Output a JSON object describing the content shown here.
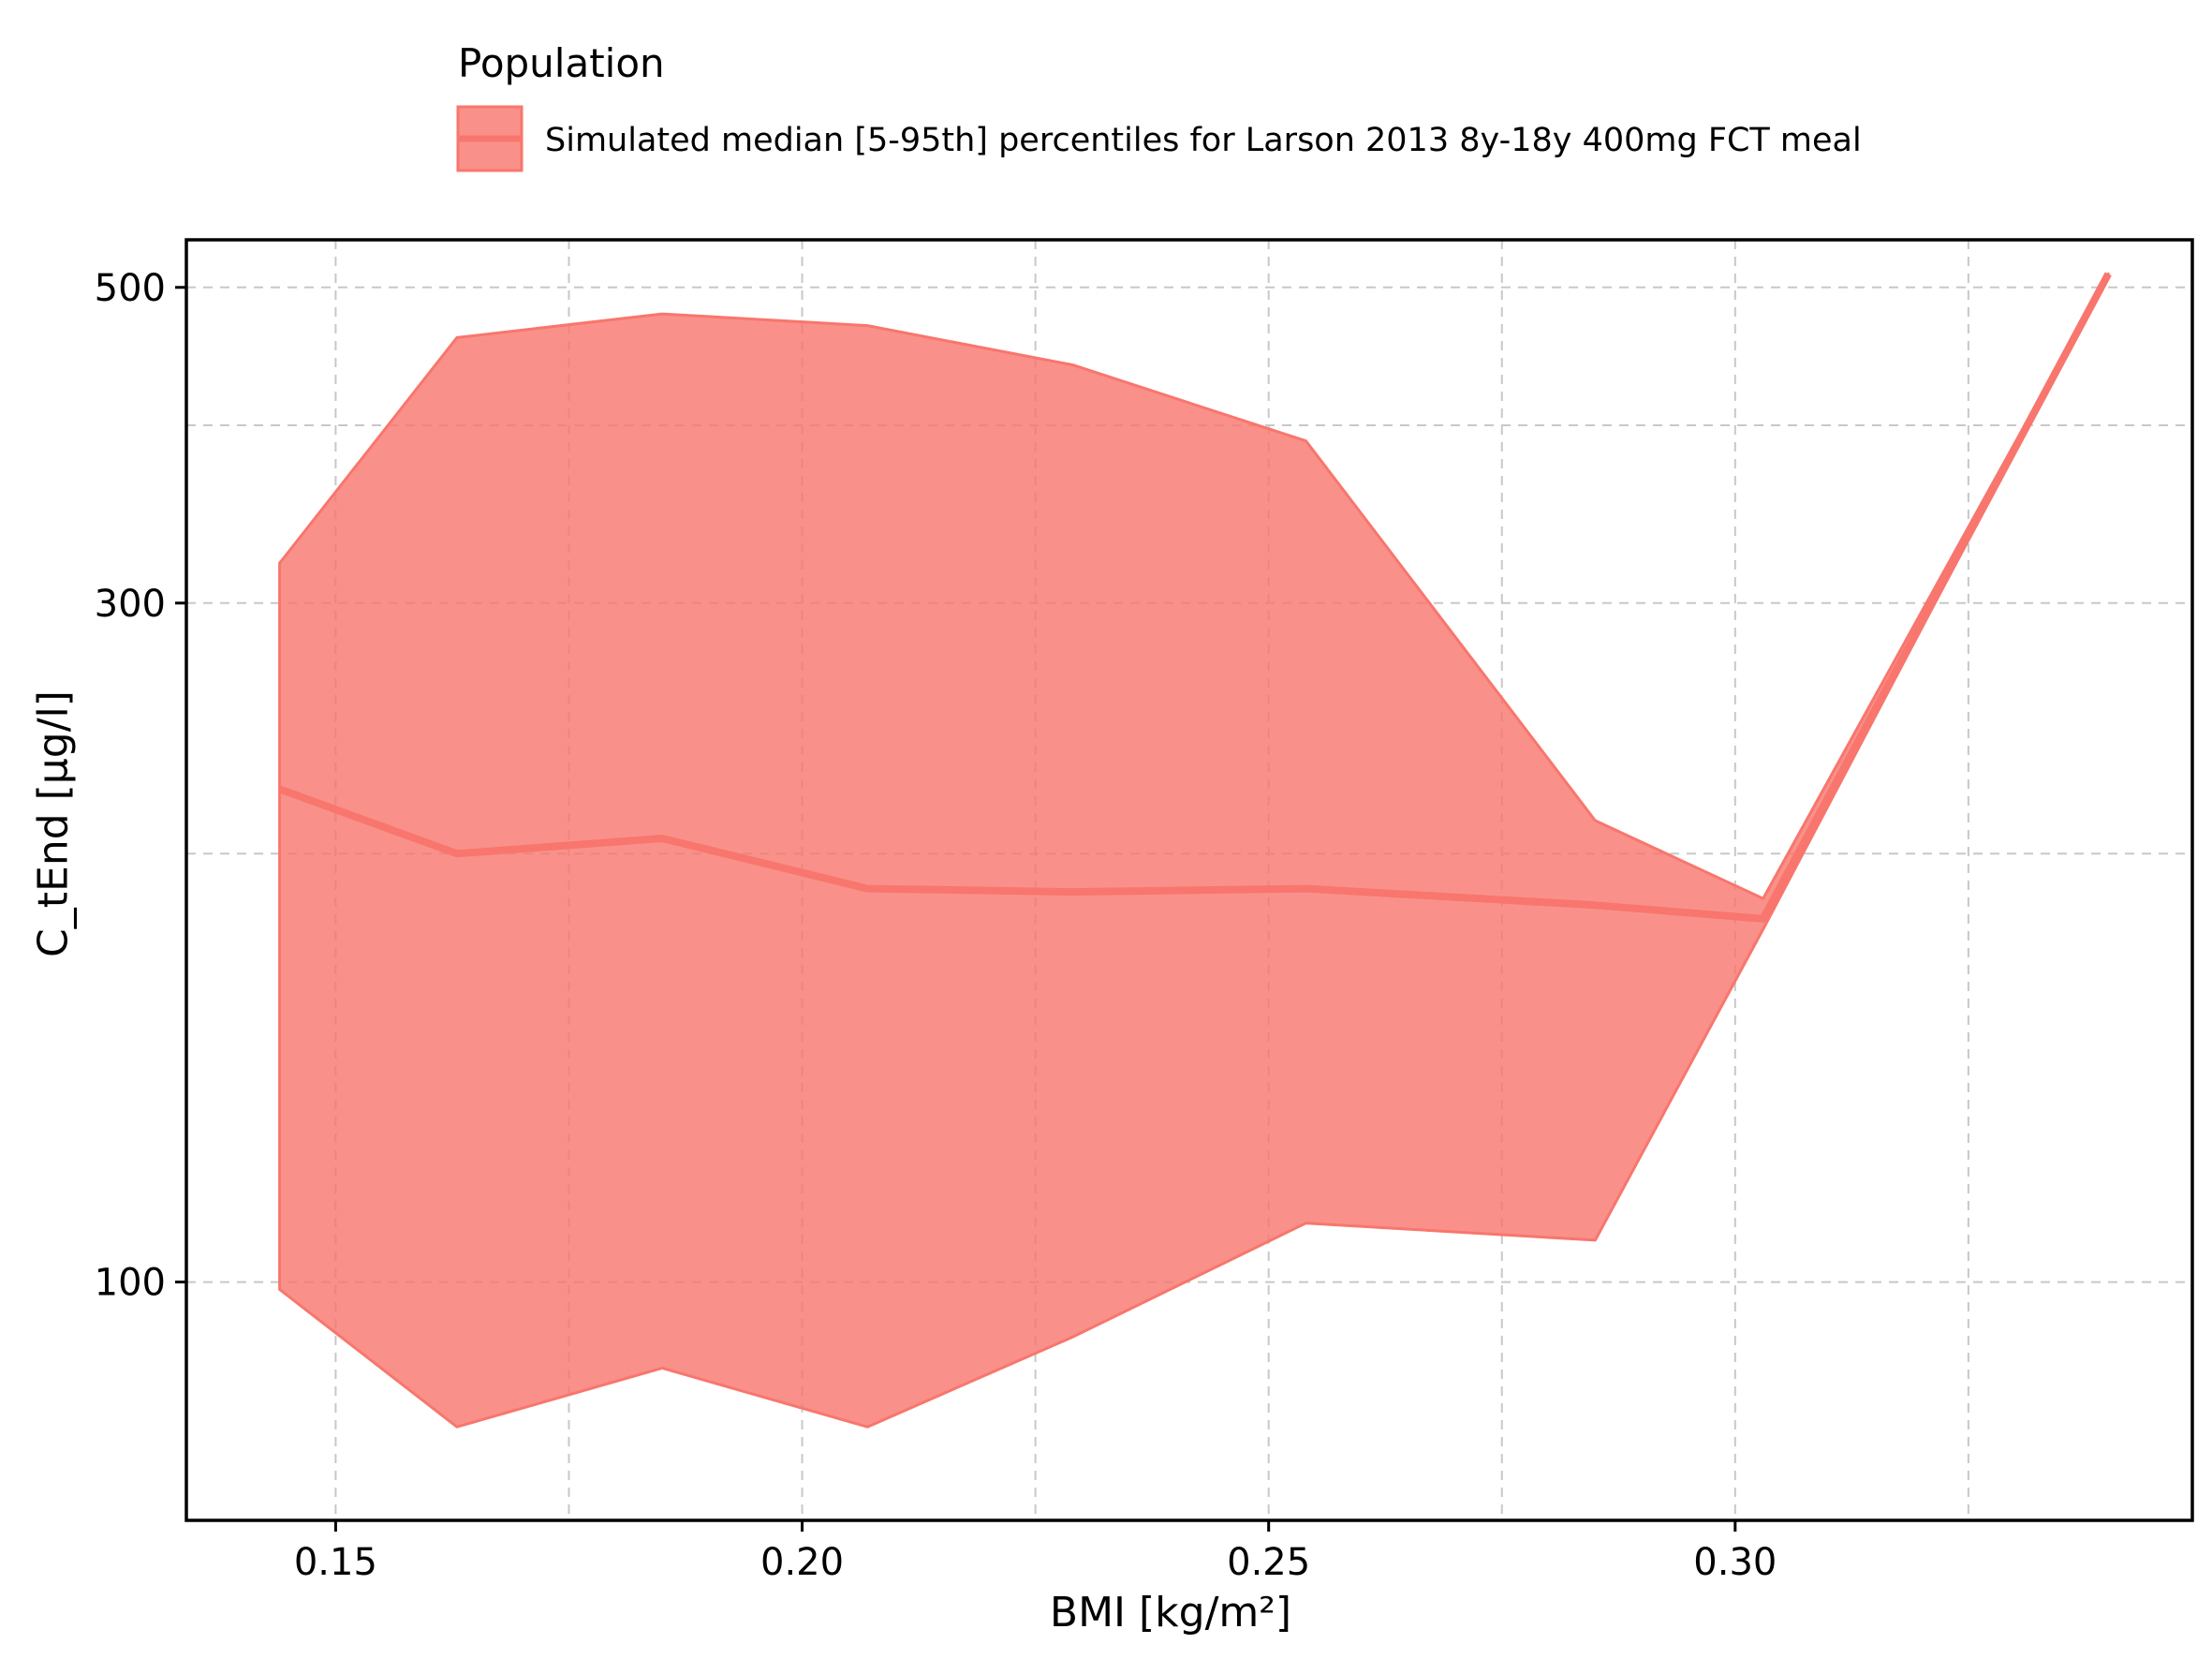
{
  "legend": {
    "title": "Population",
    "entries": [
      "Simulated median [5-95th] percentiles for Larson 2013 8y-18y 400mg FCT meal"
    ]
  },
  "colors": {
    "series": "#f8766d",
    "band_fill": "#f8766d",
    "band_opacity": 0.8,
    "grid": "#c8c8c8",
    "frame": "#000000"
  },
  "chart_data": {
    "type": "line",
    "xlabel": "BMI [kg/m²]",
    "ylabel": "C_tEnd [µg/l]",
    "x_scale": "linear",
    "y_scale": "log",
    "xlim": [
      0.134,
      0.349
    ],
    "ylim": [
      68,
      540
    ],
    "x_ticks": [
      0.15,
      0.2,
      0.25,
      0.3
    ],
    "x_tick_labels": [
      "0.15",
      "0.20",
      "0.25",
      "0.30"
    ],
    "x_minor_grid": [
      0.175,
      0.225,
      0.275,
      0.325
    ],
    "y_ticks": [
      100,
      300,
      500
    ],
    "y_tick_labels": [
      "100",
      "300",
      "500"
    ],
    "y_minor_grid": [
      200,
      400
    ],
    "grid": true,
    "legend_position": "top",
    "series": [
      {
        "name": "Simulated median [5-95th] percentiles for Larson 2013 8y-18y 400mg FCT meal",
        "x": [
          0.144,
          0.163,
          0.185,
          0.207,
          0.229,
          0.254,
          0.285,
          0.303,
          0.34
        ],
        "median": [
          222,
          200,
          205,
          189,
          188,
          189,
          184,
          180,
          511
        ],
        "p5": [
          98.8,
          79.1,
          87.0,
          79.1,
          91.5,
          110,
          107,
          177,
          511
        ],
        "p95": [
          320,
          461,
          479,
          470,
          441,
          390,
          211,
          186,
          511
        ]
      }
    ]
  }
}
